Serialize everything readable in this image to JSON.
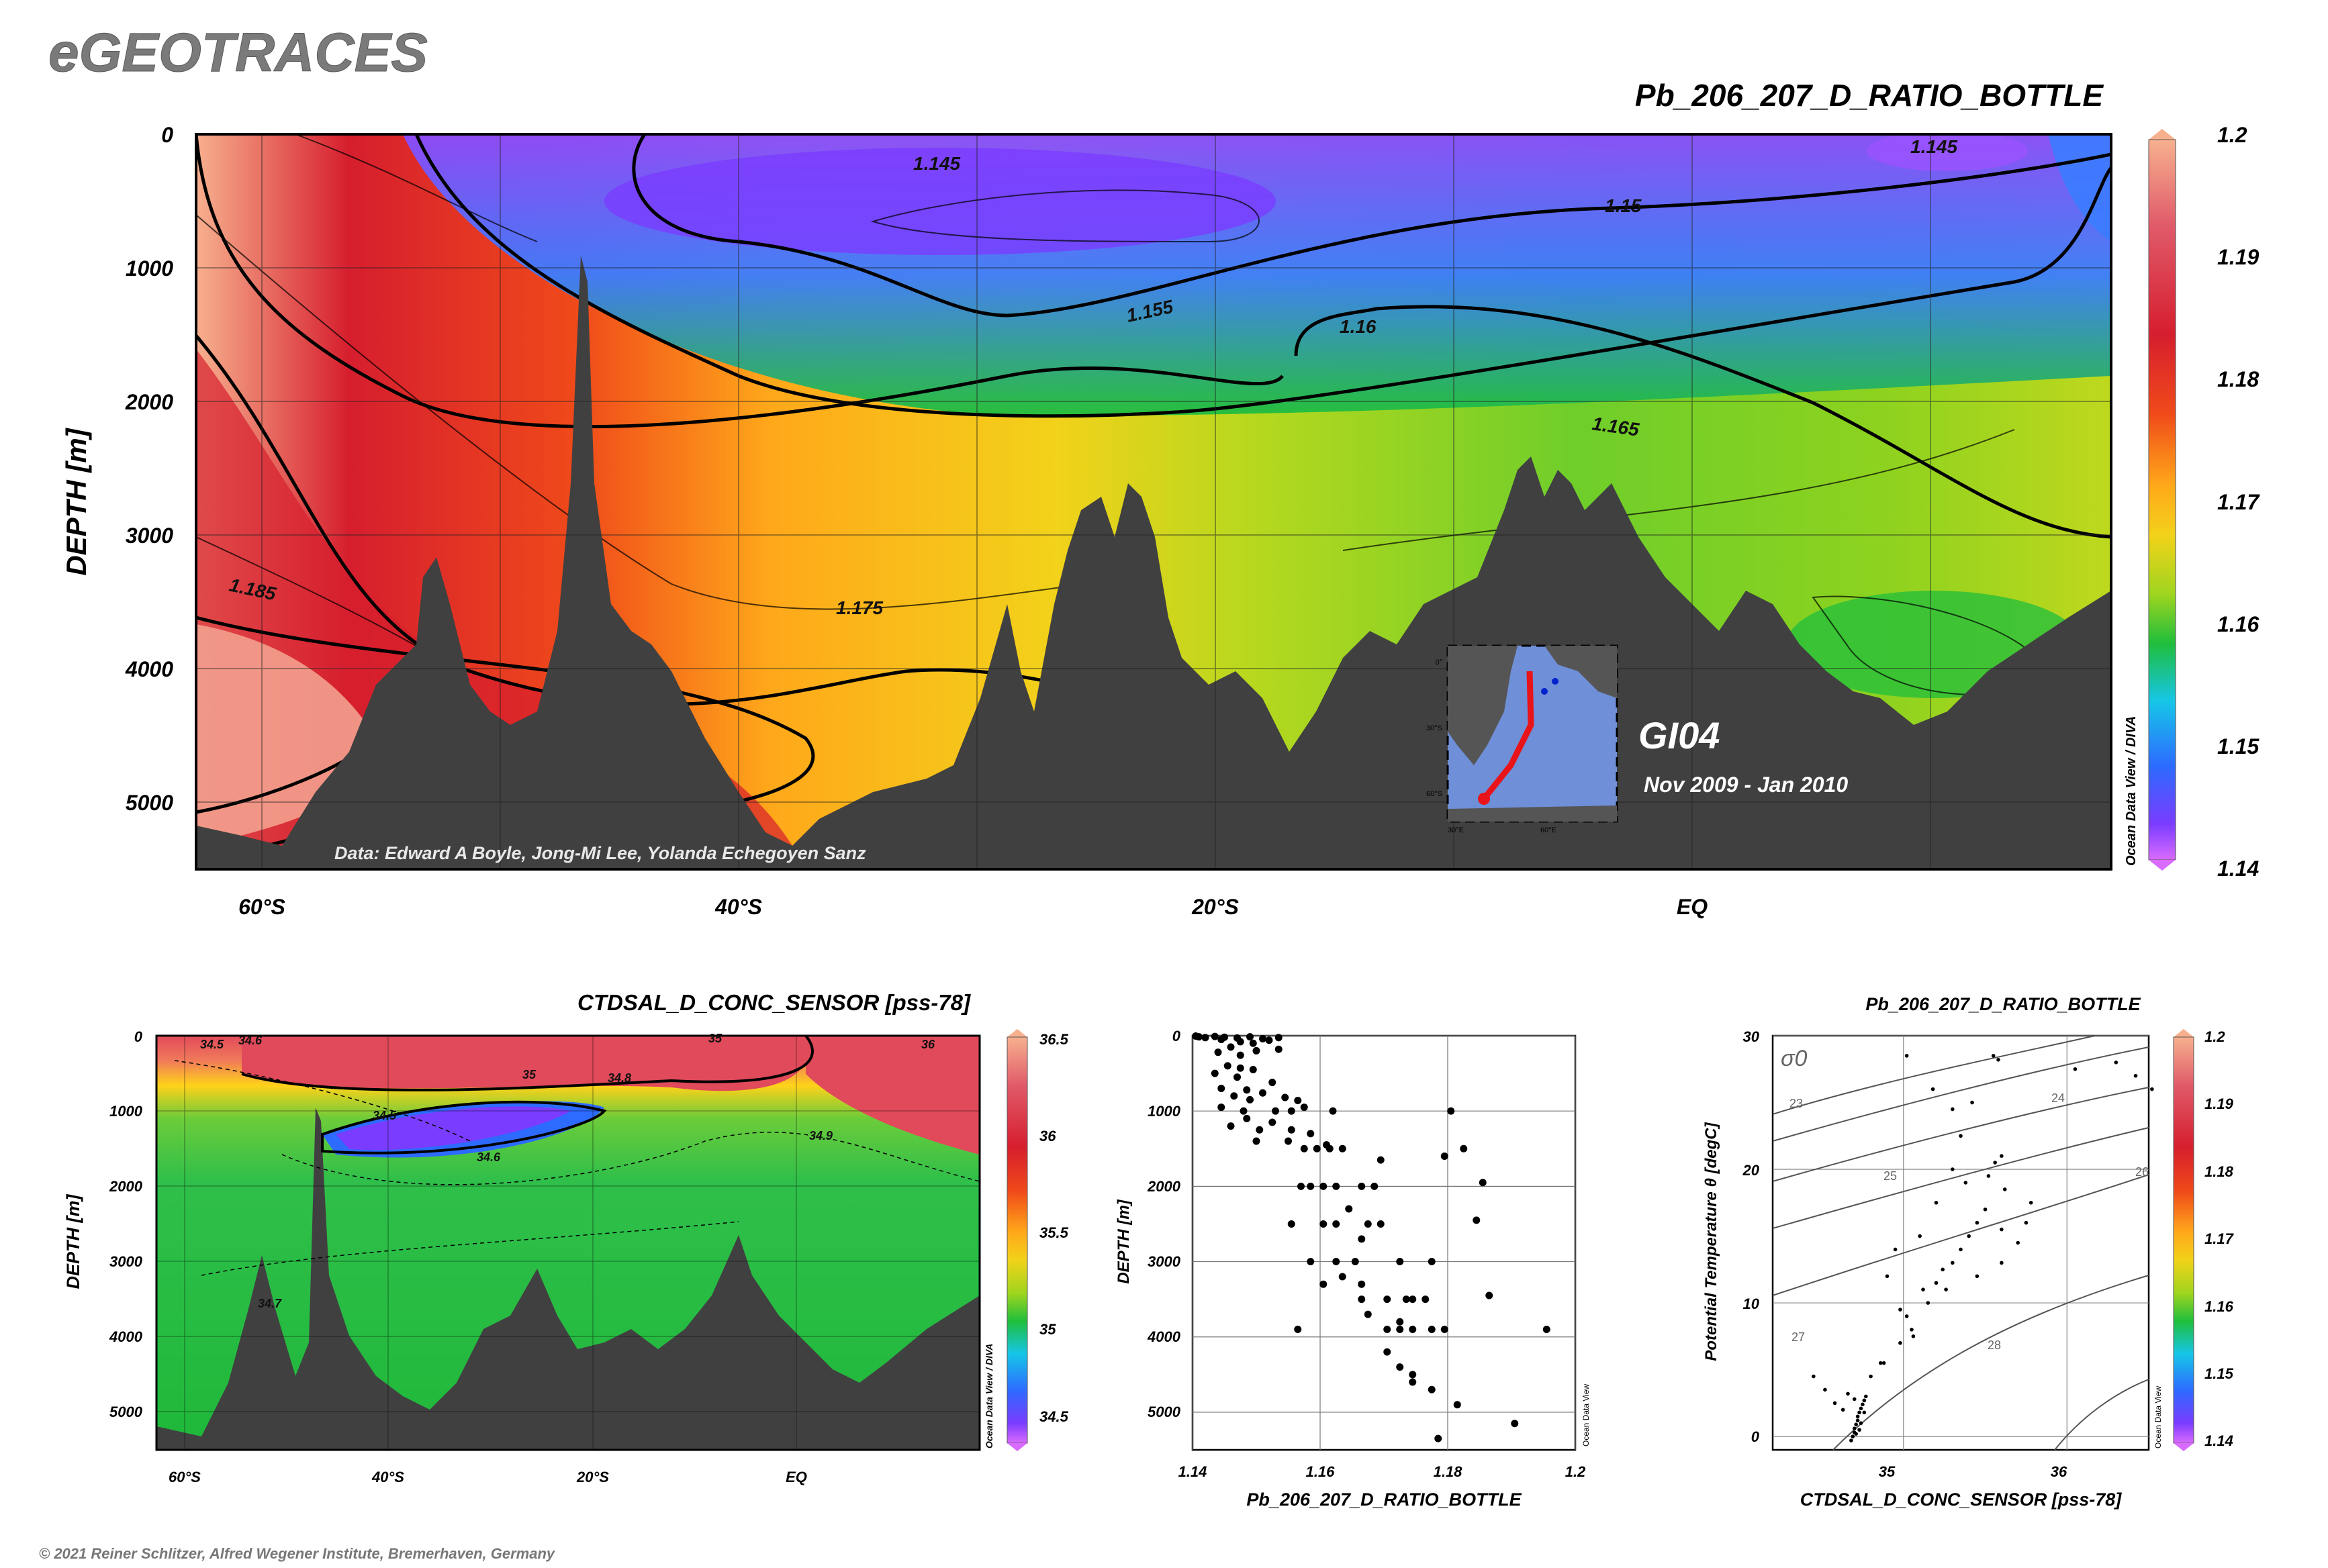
{
  "logo": "eGEOTRACES",
  "copyright": "© 2021 Reiner Schlitzer, Alfred Wegener Institute, Bremerhaven, Germany",
  "colors": {
    "land": "#404040",
    "scale": [
      "#d96bff",
      "#7a3cff",
      "#2d6bff",
      "#16c6e8",
      "#1fbe3c",
      "#a0d51e",
      "#f2d21a",
      "#ffa81a",
      "#f04a1a",
      "#d61e2e",
      "#e05a6a",
      "#f7b08e"
    ]
  },
  "chart_data": [
    {
      "id": "main-section",
      "type": "heatmap",
      "title": "Pb_206_207_D_RATIO_BOTTLE",
      "ylabel": "DEPTH [m]",
      "y_ticks": [
        "0",
        "1000",
        "2000",
        "3000",
        "4000",
        "5000"
      ],
      "x_ticks": [
        "60°S",
        "40°S",
        "20°S",
        "EQ"
      ],
      "ylim": [
        5500,
        0
      ],
      "colorbar": {
        "labels": [
          "1.2",
          "1.19",
          "1.18",
          "1.17",
          "1.16",
          "1.15",
          "1.14"
        ],
        "range": [
          1.14,
          1.2
        ],
        "credit": "Ocean Data View / DIVA"
      },
      "contour_labels": [
        "1.145",
        "1.145",
        "1.15",
        "1.155",
        "1.16",
        "1.165",
        "1.175",
        "1.185"
      ],
      "annotation": "Data: Edward A Boyle, Jong-Mi Lee, Yolanda Echegoyen Sanz",
      "cruise": "GI04",
      "period": "Nov 2009 - Jan 2010",
      "inset_map": {
        "lat_labels": [
          "0°",
          "30°S",
          "60°S"
        ],
        "lon_labels": [
          "30°E",
          "60°E"
        ]
      }
    },
    {
      "id": "salinity-section",
      "type": "heatmap",
      "title": "CTDSAL_D_CONC_SENSOR [pss-78]",
      "ylabel": "DEPTH [m]",
      "y_ticks": [
        "0",
        "1000",
        "2000",
        "3000",
        "4000",
        "5000"
      ],
      "x_ticks": [
        "60°S",
        "40°S",
        "20°S",
        "EQ"
      ],
      "ylim": [
        5500,
        0
      ],
      "colorbar": {
        "labels": [
          "36.5",
          "36",
          "35.5",
          "35",
          "34.5"
        ],
        "range": [
          34.4,
          36.5
        ],
        "credit": "Ocean Data View / DIVA"
      },
      "contour_labels": [
        "34.5",
        "34.6",
        "35",
        "34.8",
        "35",
        "36",
        "34.5",
        "34.6",
        "34.9",
        "34.7"
      ]
    },
    {
      "id": "profile-scatter",
      "type": "scatter",
      "xlabel": "Pb_206_207_D_RATIO_BOTTLE",
      "ylabel": "DEPTH [m]",
      "x_ticks": [
        "1.14",
        "1.16",
        "1.18",
        "1.2"
      ],
      "y_ticks": [
        "0",
        "1000",
        "2000",
        "3000",
        "4000",
        "5000"
      ],
      "xlim": [
        1.14,
        1.2
      ],
      "ylim": [
        5500,
        0
      ],
      "credit": "Ocean Data View",
      "points": [
        [
          1.1405,
          5
        ],
        [
          1.141,
          15
        ],
        [
          1.142,
          25
        ],
        [
          1.1435,
          10
        ],
        [
          1.145,
          20
        ],
        [
          1.147,
          30
        ],
        [
          1.149,
          15
        ],
        [
          1.151,
          40
        ],
        [
          1.152,
          60
        ],
        [
          1.1535,
          25
        ],
        [
          1.1445,
          50
        ],
        [
          1.1475,
          80
        ],
        [
          1.1495,
          100
        ],
        [
          1.146,
          150
        ],
        [
          1.15,
          200
        ],
        [
          1.1535,
          180
        ],
        [
          1.144,
          220
        ],
        [
          1.1475,
          260
        ],
        [
          1.1455,
          400
        ],
        [
          1.1475,
          430
        ],
        [
          1.1495,
          450
        ],
        [
          1.1435,
          500
        ],
        [
          1.147,
          550
        ],
        [
          1.1525,
          620
        ],
        [
          1.1445,
          700
        ],
        [
          1.1485,
          720
        ],
        [
          1.151,
          760
        ],
        [
          1.1465,
          800
        ],
        [
          1.149,
          850
        ],
        [
          1.1545,
          820
        ],
        [
          1.1565,
          860
        ],
        [
          1.1445,
          950
        ],
        [
          1.1575,
          950
        ],
        [
          1.148,
          1000
        ],
        [
          1.153,
          1000
        ],
        [
          1.1555,
          1000
        ],
        [
          1.162,
          1000
        ],
        [
          1.1485,
          1100
        ],
        [
          1.1525,
          1150
        ],
        [
          1.146,
          1200
        ],
        [
          1.1505,
          1250
        ],
        [
          1.1555,
          1250
        ],
        [
          1.1585,
          1300
        ],
        [
          1.15,
          1400
        ],
        [
          1.155,
          1400
        ],
        [
          1.161,
          1450
        ],
        [
          1.1575,
          1500
        ],
        [
          1.1595,
          1500
        ],
        [
          1.1615,
          1500
        ],
        [
          1.1635,
          1500
        ],
        [
          1.1695,
          1650
        ],
        [
          1.1795,
          1600
        ],
        [
          1.157,
          2000
        ],
        [
          1.1585,
          2000
        ],
        [
          1.1605,
          2000
        ],
        [
          1.1625,
          2000
        ],
        [
          1.1665,
          2000
        ],
        [
          1.1685,
          2000
        ],
        [
          1.1645,
          2300
        ],
        [
          1.1555,
          2500
        ],
        [
          1.1605,
          2500
        ],
        [
          1.1625,
          2500
        ],
        [
          1.1675,
          2500
        ],
        [
          1.1695,
          2500
        ],
        [
          1.1665,
          2700
        ],
        [
          1.1585,
          3000
        ],
        [
          1.1625,
          3000
        ],
        [
          1.1655,
          3000
        ],
        [
          1.1725,
          3000
        ],
        [
          1.1775,
          3000
        ],
        [
          1.1635,
          3200
        ],
        [
          1.1605,
          3300
        ],
        [
          1.1665,
          3300
        ],
        [
          1.1665,
          3500
        ],
        [
          1.1705,
          3500
        ],
        [
          1.1735,
          3500
        ],
        [
          1.1745,
          3500
        ],
        [
          1.1765,
          3500
        ],
        [
          1.1675,
          3700
        ],
        [
          1.1725,
          3800
        ],
        [
          1.1565,
          3900
        ],
        [
          1.1705,
          3900
        ],
        [
          1.1725,
          3900
        ],
        [
          1.1745,
          3900
        ],
        [
          1.1775,
          3900
        ],
        [
          1.1795,
          3900
        ],
        [
          1.1705,
          4200
        ],
        [
          1.1725,
          4400
        ],
        [
          1.1745,
          4500
        ],
        [
          1.1745,
          4600
        ],
        [
          1.1775,
          4700
        ],
        [
          1.1815,
          4900
        ],
        [
          1.1905,
          5150
        ],
        [
          1.1785,
          5350
        ],
        [
          1.1805,
          1000
        ],
        [
          1.1825,
          1500
        ],
        [
          1.1855,
          1950
        ],
        [
          1.1845,
          2450
        ],
        [
          1.1865,
          3450
        ],
        [
          1.1955,
          3900
        ]
      ]
    },
    {
      "id": "ts-diagram",
      "type": "scatter",
      "title": "Pb_206_207_D_RATIO_BOTTLE",
      "xlabel": "CTDSAL_D_CONC_SENSOR [pss-78]",
      "ylabel": "Potential Temperature θ [degC]",
      "x_ticks": [
        "35",
        "36"
      ],
      "y_ticks": [
        "0",
        "10",
        "20",
        "30"
      ],
      "xlim": [
        34.2,
        36.5
      ],
      "ylim": [
        -1,
        30
      ],
      "colorbar": {
        "labels": [
          "1.2",
          "1.19",
          "1.18",
          "1.17",
          "1.16",
          "1.15",
          "1.14"
        ],
        "range": [
          1.14,
          1.2
        ],
        "credit": "Ocean Data View"
      },
      "isopycnal_symbol": "σ0",
      "isopycnal_labels": [
        "23",
        "24",
        "25",
        "26",
        "27",
        "28"
      ],
      "points": [
        [
          34.68,
          -0.3
        ],
        [
          34.69,
          0.0
        ],
        [
          34.7,
          0.3
        ],
        [
          34.7,
          0.6
        ],
        [
          34.71,
          0.9
        ],
        [
          34.72,
          1.2
        ],
        [
          34.72,
          1.5
        ],
        [
          34.73,
          1.8
        ],
        [
          34.74,
          2.1
        ],
        [
          34.75,
          2.4
        ],
        [
          34.76,
          2.7
        ],
        [
          34.77,
          3.0
        ],
        [
          34.73,
          0.5
        ],
        [
          34.71,
          0.2
        ],
        [
          34.76,
          1.8
        ],
        [
          34.74,
          1.0
        ],
        [
          34.45,
          4.5
        ],
        [
          34.52,
          3.5
        ],
        [
          34.58,
          2.5
        ],
        [
          34.63,
          2.0
        ],
        [
          34.7,
          2.8
        ],
        [
          34.66,
          3.2
        ],
        [
          34.8,
          4.5
        ],
        [
          34.88,
          5.5
        ],
        [
          34.98,
          7.0
        ],
        [
          35.05,
          8.0
        ],
        [
          35.02,
          9.0
        ],
        [
          35.15,
          10.0
        ],
        [
          35.2,
          11.5
        ],
        [
          35.24,
          12.5
        ],
        [
          35.3,
          13.0
        ],
        [
          35.35,
          14.0
        ],
        [
          35.4,
          15.0
        ],
        [
          35.45,
          16.0
        ],
        [
          35.5,
          17.0
        ],
        [
          35.38,
          19.0
        ],
        [
          35.52,
          19.5
        ],
        [
          35.56,
          20.5
        ],
        [
          35.6,
          21.0
        ],
        [
          35.35,
          22.5
        ],
        [
          35.3,
          24.5
        ],
        [
          35.42,
          25.0
        ],
        [
          35.18,
          26.0
        ],
        [
          35.02,
          28.5
        ],
        [
          35.55,
          28.5
        ],
        [
          35.58,
          28.2
        ],
        [
          34.86,
          5.5
        ],
        [
          35.06,
          7.5
        ],
        [
          34.98,
          9.5
        ],
        [
          35.12,
          11.0
        ],
        [
          35.26,
          11.0
        ],
        [
          35.45,
          12.0
        ],
        [
          35.6,
          13.0
        ],
        [
          35.7,
          14.5
        ],
        [
          35.75,
          16.0
        ],
        [
          35.78,
          17.5
        ],
        [
          35.62,
          18.5
        ],
        [
          35.1,
          15.0
        ],
        [
          35.2,
          17.5
        ],
        [
          34.9,
          12.0
        ],
        [
          34.95,
          14.0
        ],
        [
          35.3,
          20.0
        ],
        [
          35.6,
          15.5
        ],
        [
          36.05,
          27.5
        ],
        [
          36.3,
          28.0
        ],
        [
          36.42,
          27.0
        ],
        [
          36.52,
          26.0
        ]
      ]
    }
  ]
}
